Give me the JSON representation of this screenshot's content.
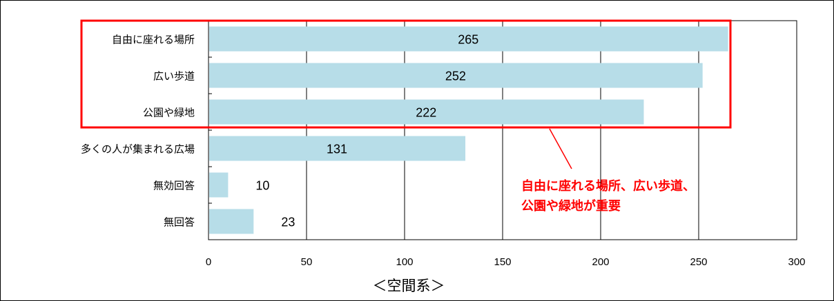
{
  "chart_data": {
    "type": "bar",
    "orientation": "horizontal",
    "categories": [
      "自由に座れる場所",
      "広い歩道",
      "公園や緑地",
      "多くの人が集まれる広場",
      "無効回答",
      "無回答"
    ],
    "values": [
      265,
      252,
      222,
      131,
      10,
      23
    ],
    "xlabel": "＜空間系＞",
    "xlim": [
      0,
      300
    ],
    "xticks": [
      0,
      50,
      100,
      150,
      200,
      250,
      300
    ],
    "grid": "vertical",
    "bar_color": "#b7dde8",
    "highlight_color": "#ff0000",
    "highlighted_categories": [
      "自由に座れる場所",
      "広い歩道",
      "公園や緑地"
    ],
    "annotation": {
      "lines": [
        "自由に座れる場所、広い歩道、",
        "公園や緑地が重要"
      ]
    }
  }
}
